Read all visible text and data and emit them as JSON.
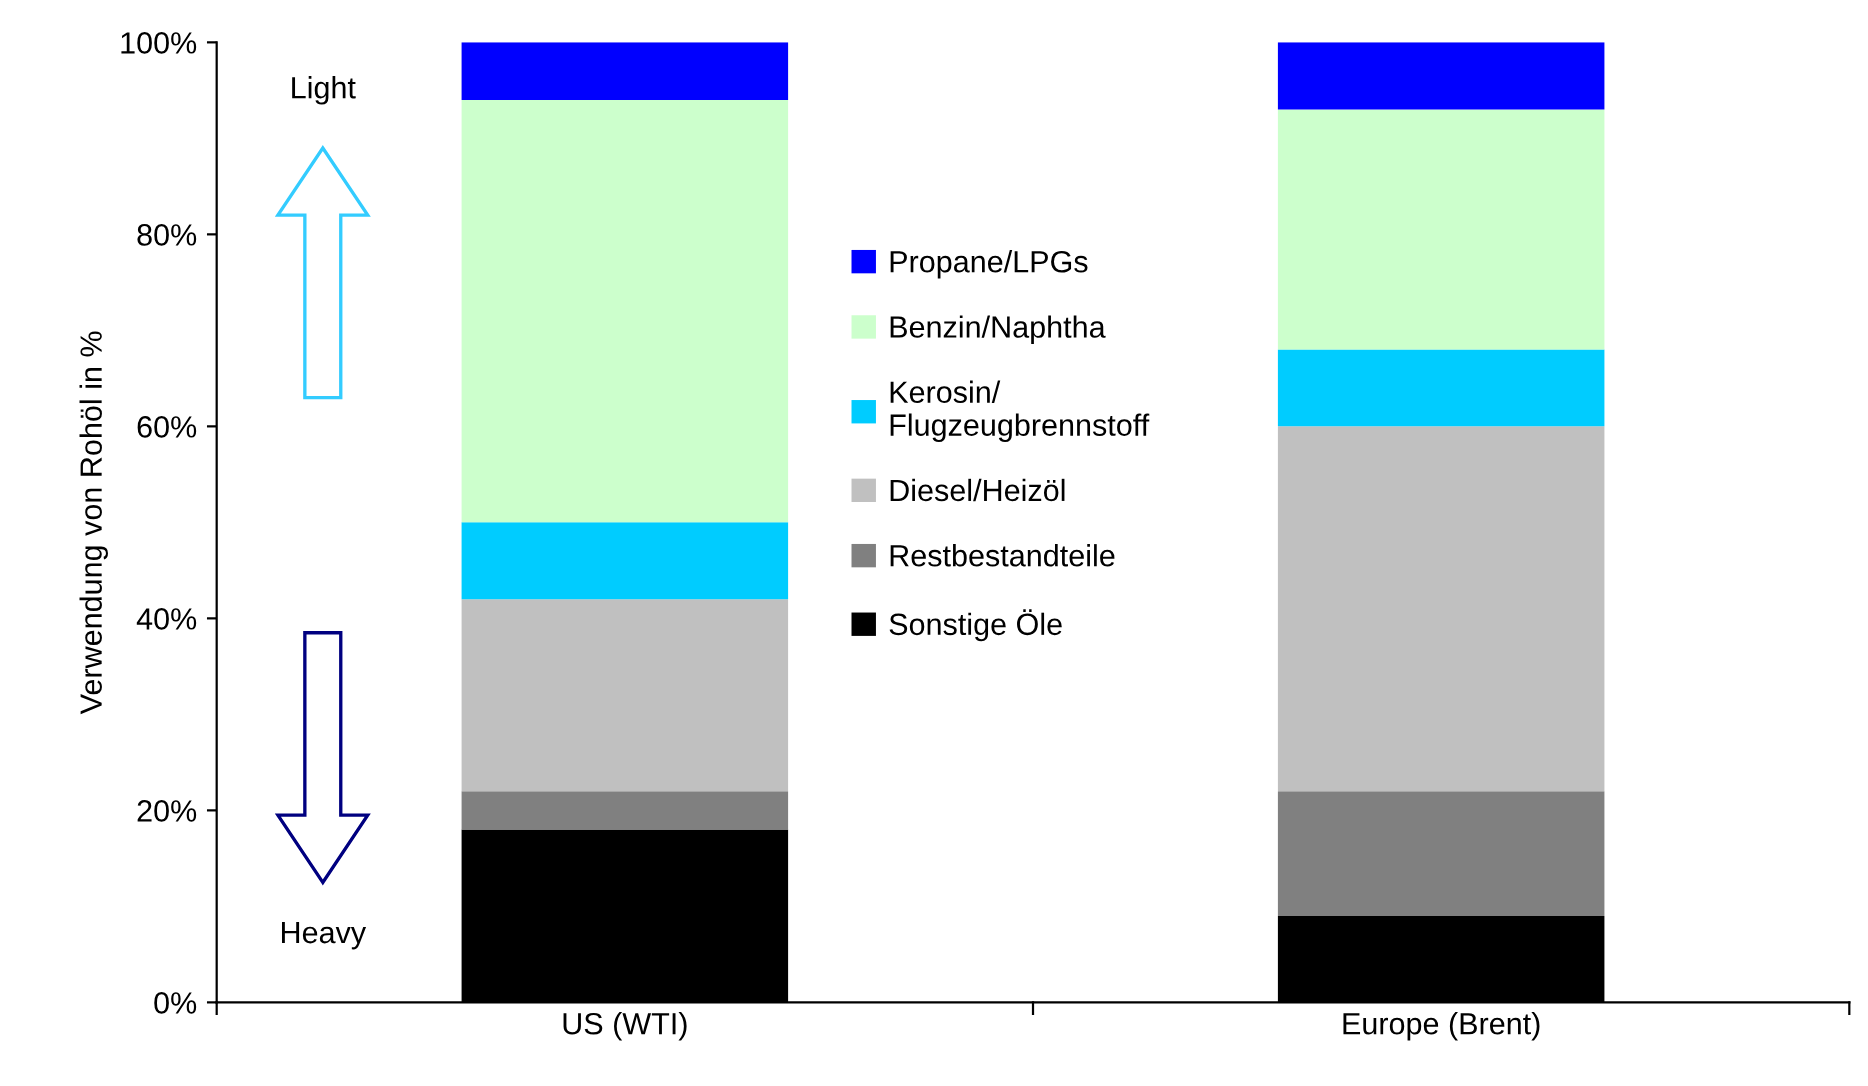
{
  "chart_data": {
    "type": "bar",
    "stacked": true,
    "ylabel": "Verwendung von Rohöl in %",
    "categories": [
      "US (WTI)",
      "Europe (Brent)"
    ],
    "series": [
      {
        "name": "Sonstige Öle",
        "color": "#000000",
        "values": [
          18,
          9
        ]
      },
      {
        "name": "Restbestandteile",
        "color": "#808080",
        "values": [
          4,
          13
        ]
      },
      {
        "name": "Diesel/Heizöl",
        "color": "#c0c0c0",
        "values": [
          20,
          38
        ]
      },
      {
        "name": "Kerosin/\nFlugzeugbrennstoff",
        "color": "#00ccff",
        "values": [
          8,
          8
        ]
      },
      {
        "name": "Benzin/Naphtha",
        "color": "#ccffcc",
        "values": [
          44,
          25
        ]
      },
      {
        "name": "Propane/LPGs",
        "color": "#0000ff",
        "values": [
          6,
          7
        ]
      }
    ],
    "ylim": [
      0,
      100
    ],
    "yticks": [
      {
        "value": 0,
        "label": "0%"
      },
      {
        "value": 20,
        "label": "20%"
      },
      {
        "value": 40,
        "label": "40%"
      },
      {
        "value": 60,
        "label": "60%"
      },
      {
        "value": 80,
        "label": "80%"
      },
      {
        "value": 100,
        "label": "100%"
      }
    ],
    "grid": false,
    "legend": "center",
    "annotations": [
      "Light",
      "Heavy"
    ]
  }
}
